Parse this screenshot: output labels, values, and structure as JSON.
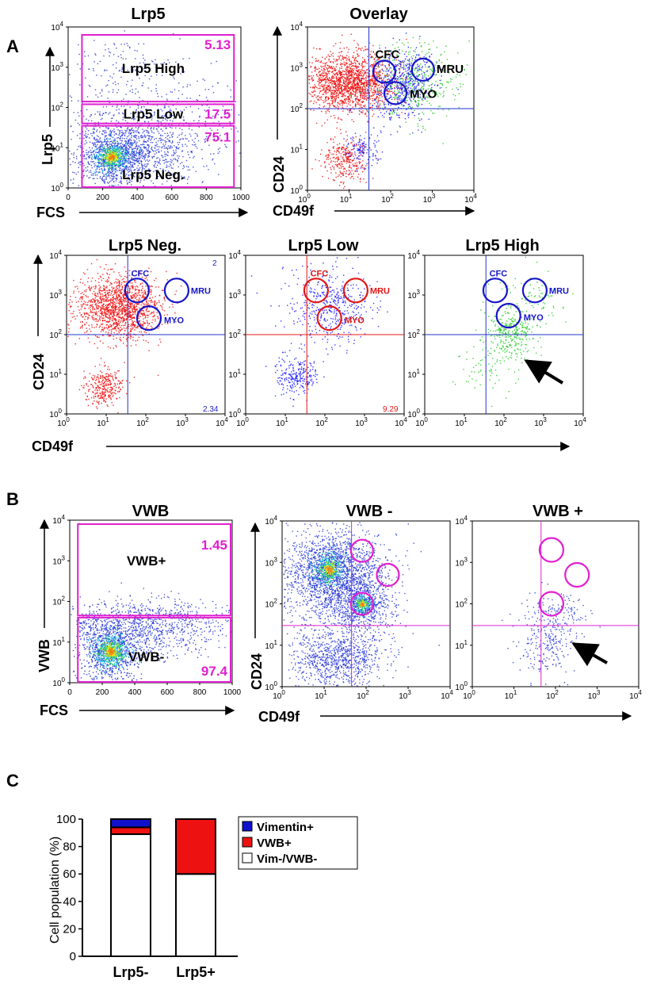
{
  "panel_labels": {
    "a": "A",
    "b": "B",
    "c": "C"
  },
  "colors": {
    "gate": "#e020d0",
    "blue": "#1a1aff",
    "red": "#ee1111",
    "green": "#22cc22",
    "circle_blue": "#1616c8",
    "circle_red": "#e01818"
  },
  "chart_data": [
    {
      "id": "lrp5",
      "panel": "A",
      "type": "scatter",
      "title": "Lrp5",
      "xlabel": "FCS",
      "ylabel": "Lrp5",
      "xscale": "linear",
      "yscale": "log",
      "xlim": [
        0,
        1000
      ],
      "ylim": [
        1,
        10000
      ],
      "xticks": [
        "0",
        "200",
        "400",
        "600",
        "800",
        "1000"
      ],
      "gates": [
        {
          "name": "Lrp5 High",
          "percent": "5.13",
          "x": [
            80,
            960
          ],
          "y": [
            140,
            10000
          ]
        },
        {
          "name": "Lrp5 Low",
          "percent": "17.5",
          "x": [
            80,
            960
          ],
          "y": [
            40,
            120
          ]
        },
        {
          "name": "Lrp5 Neg.",
          "percent": "75.1",
          "x": [
            80,
            960
          ],
          "y": [
            1,
            35
          ]
        }
      ]
    },
    {
      "id": "overlay",
      "panel": "A",
      "type": "scatter",
      "title": "Overlay",
      "xlabel": "CD49f",
      "ylabel": "CD24",
      "xscale": "log",
      "yscale": "log",
      "xlim": [
        1,
        10000
      ],
      "ylim": [
        1,
        10000
      ],
      "quadrant": [
        30,
        100
      ],
      "circles": [
        {
          "label": "CFC",
          "x": 70,
          "y": 800,
          "color": "blue"
        },
        {
          "label": "MRU",
          "x": 600,
          "y": 900,
          "color": "blue"
        },
        {
          "label": "MYO",
          "x": 130,
          "y": 240,
          "color": "blue"
        }
      ]
    },
    {
      "id": "lrp5neg",
      "panel": "A",
      "type": "scatter",
      "title": "Lrp5 Neg.",
      "xlabel": "CD49f",
      "ylabel": "CD24",
      "xscale": "log",
      "yscale": "log",
      "xlim": [
        1,
        10000
      ],
      "ylim": [
        1,
        10000
      ],
      "quadrant": [
        35,
        100
      ],
      "corner_values": {
        "top_right": "2",
        "bottom_right": "2.34"
      },
      "circles": [
        {
          "label": "CFC",
          "x": 60,
          "y": 1300,
          "color": "blue"
        },
        {
          "label": "MRU",
          "x": 600,
          "y": 1300,
          "color": "blue"
        },
        {
          "label": "MYO",
          "x": 120,
          "y": 260,
          "color": "blue"
        }
      ]
    },
    {
      "id": "lrp5low",
      "panel": "A",
      "type": "scatter",
      "title": "Lrp5 Low",
      "xscale": "log",
      "yscale": "log",
      "xlim": [
        1,
        10000
      ],
      "ylim": [
        1,
        10000
      ],
      "quadrant": [
        35,
        100
      ],
      "corner_values": {
        "bottom_right": "9.29"
      },
      "circles": [
        {
          "label": "CFC",
          "x": 60,
          "y": 1300,
          "color": "red"
        },
        {
          "label": "MRU",
          "x": 600,
          "y": 1300,
          "color": "red"
        },
        {
          "label": "MYO",
          "x": 130,
          "y": 260,
          "color": "red"
        }
      ]
    },
    {
      "id": "lrp5high",
      "panel": "A",
      "type": "scatter",
      "title": "Lrp5 High",
      "xscale": "log",
      "yscale": "log",
      "xlim": [
        1,
        10000
      ],
      "ylim": [
        1,
        10000
      ],
      "quadrant": [
        35,
        100
      ],
      "circles": [
        {
          "label": "CFC",
          "x": 60,
          "y": 1300,
          "color": "blue"
        },
        {
          "label": "MRU",
          "x": 600,
          "y": 1300,
          "color": "blue"
        },
        {
          "label": "MYO",
          "x": 130,
          "y": 300,
          "color": "blue"
        }
      ]
    },
    {
      "id": "vwb",
      "panel": "B",
      "type": "scatter",
      "title": "VWB",
      "xlabel": "FCS",
      "ylabel": "VWB",
      "xscale": "linear",
      "yscale": "log",
      "xlim": [
        0,
        1000
      ],
      "ylim": [
        1,
        10000
      ],
      "xticks": [
        "0",
        "200",
        "400",
        "600",
        "800",
        "1000"
      ],
      "gates": [
        {
          "name": "VWB+",
          "percent": "1.45",
          "x": [
            50,
            1000
          ],
          "y": [
            45,
            8000
          ]
        },
        {
          "name": "VWB-",
          "percent": "97.4",
          "x": [
            50,
            1000
          ],
          "y": [
            1,
            40
          ]
        }
      ]
    },
    {
      "id": "vwbneg",
      "panel": "B",
      "type": "scatter",
      "title": "VWB -",
      "xlabel": "CD49f",
      "ylabel": "CD24",
      "xscale": "log",
      "yscale": "log",
      "xlim": [
        1,
        10000
      ],
      "ylim": [
        1,
        10000
      ],
      "quadrant": [
        45,
        30
      ],
      "circles": [
        {
          "x": 80,
          "y": 1900
        },
        {
          "x": 330,
          "y": 500
        },
        {
          "x": 80,
          "y": 100
        }
      ]
    },
    {
      "id": "vwbpos",
      "panel": "B",
      "type": "scatter",
      "title": "VWB +",
      "xscale": "log",
      "yscale": "log",
      "xlim": [
        1,
        10000
      ],
      "ylim": [
        1,
        10000
      ],
      "quadrant": [
        45,
        30
      ],
      "circles": [
        {
          "x": 80,
          "y": 2000
        },
        {
          "x": 330,
          "y": 500
        },
        {
          "x": 80,
          "y": 100
        }
      ]
    },
    {
      "id": "population",
      "panel": "C",
      "type": "bar",
      "stacked": true,
      "ylabel": "Cell population (%)",
      "ylim": [
        0,
        100
      ],
      "yticks": [
        "0",
        "20",
        "40",
        "60",
        "80",
        "100"
      ],
      "categories": [
        "Lrp5-",
        "Lrp5+"
      ],
      "series": [
        {
          "name": "Vim-/VWB-",
          "values": [
            89,
            60
          ],
          "color": "#ffffff"
        },
        {
          "name": "VWB+",
          "values": [
            5,
            40
          ],
          "color": "#ee1111"
        },
        {
          "name": "Vimentin+",
          "values": [
            6,
            0
          ],
          "color": "#1111cc"
        }
      ]
    }
  ]
}
